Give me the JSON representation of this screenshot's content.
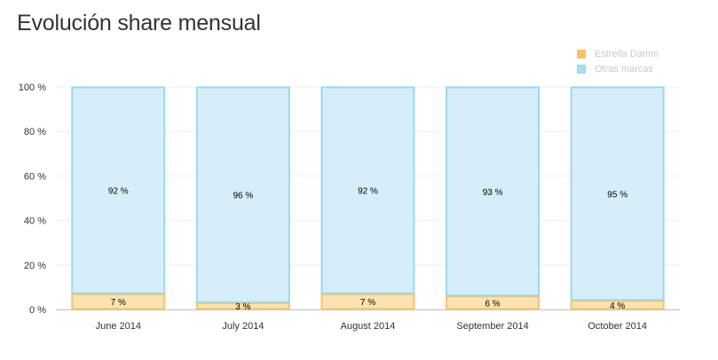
{
  "chart_data": {
    "type": "bar",
    "stacked": true,
    "percent": true,
    "title": "Evolución share mensual",
    "categories": [
      "June 2014",
      "July 2014",
      "August 2014",
      "September 2014",
      "October 2014"
    ],
    "series": [
      {
        "name": "Estrella Damm",
        "values": [
          7,
          3,
          7,
          6,
          4
        ],
        "labels": [
          "7 %",
          "3 %",
          "7 %",
          "6 %",
          "4 %"
        ],
        "fill": "#fde2b1",
        "stroke": "#f4c36a"
      },
      {
        "name": "Otras marcas",
        "values": [
          92,
          96,
          92,
          93,
          95
        ],
        "labels": [
          "92 %",
          "96 %",
          "92 %",
          "93 %",
          "95 %"
        ],
        "fill": "#d6eefa",
        "stroke": "#9bd8ee"
      }
    ],
    "ylim": [
      0,
      100
    ],
    "yticks": [
      0,
      20,
      40,
      60,
      80,
      100
    ],
    "ytick_labels": [
      "0 %",
      "20 %",
      "40 %",
      "60 %",
      "80 %",
      "100 %"
    ],
    "grid": true,
    "legend_position": "top-right",
    "legend_swatch_colors": [
      "#f7c069",
      "#a9dcf1"
    ]
  }
}
